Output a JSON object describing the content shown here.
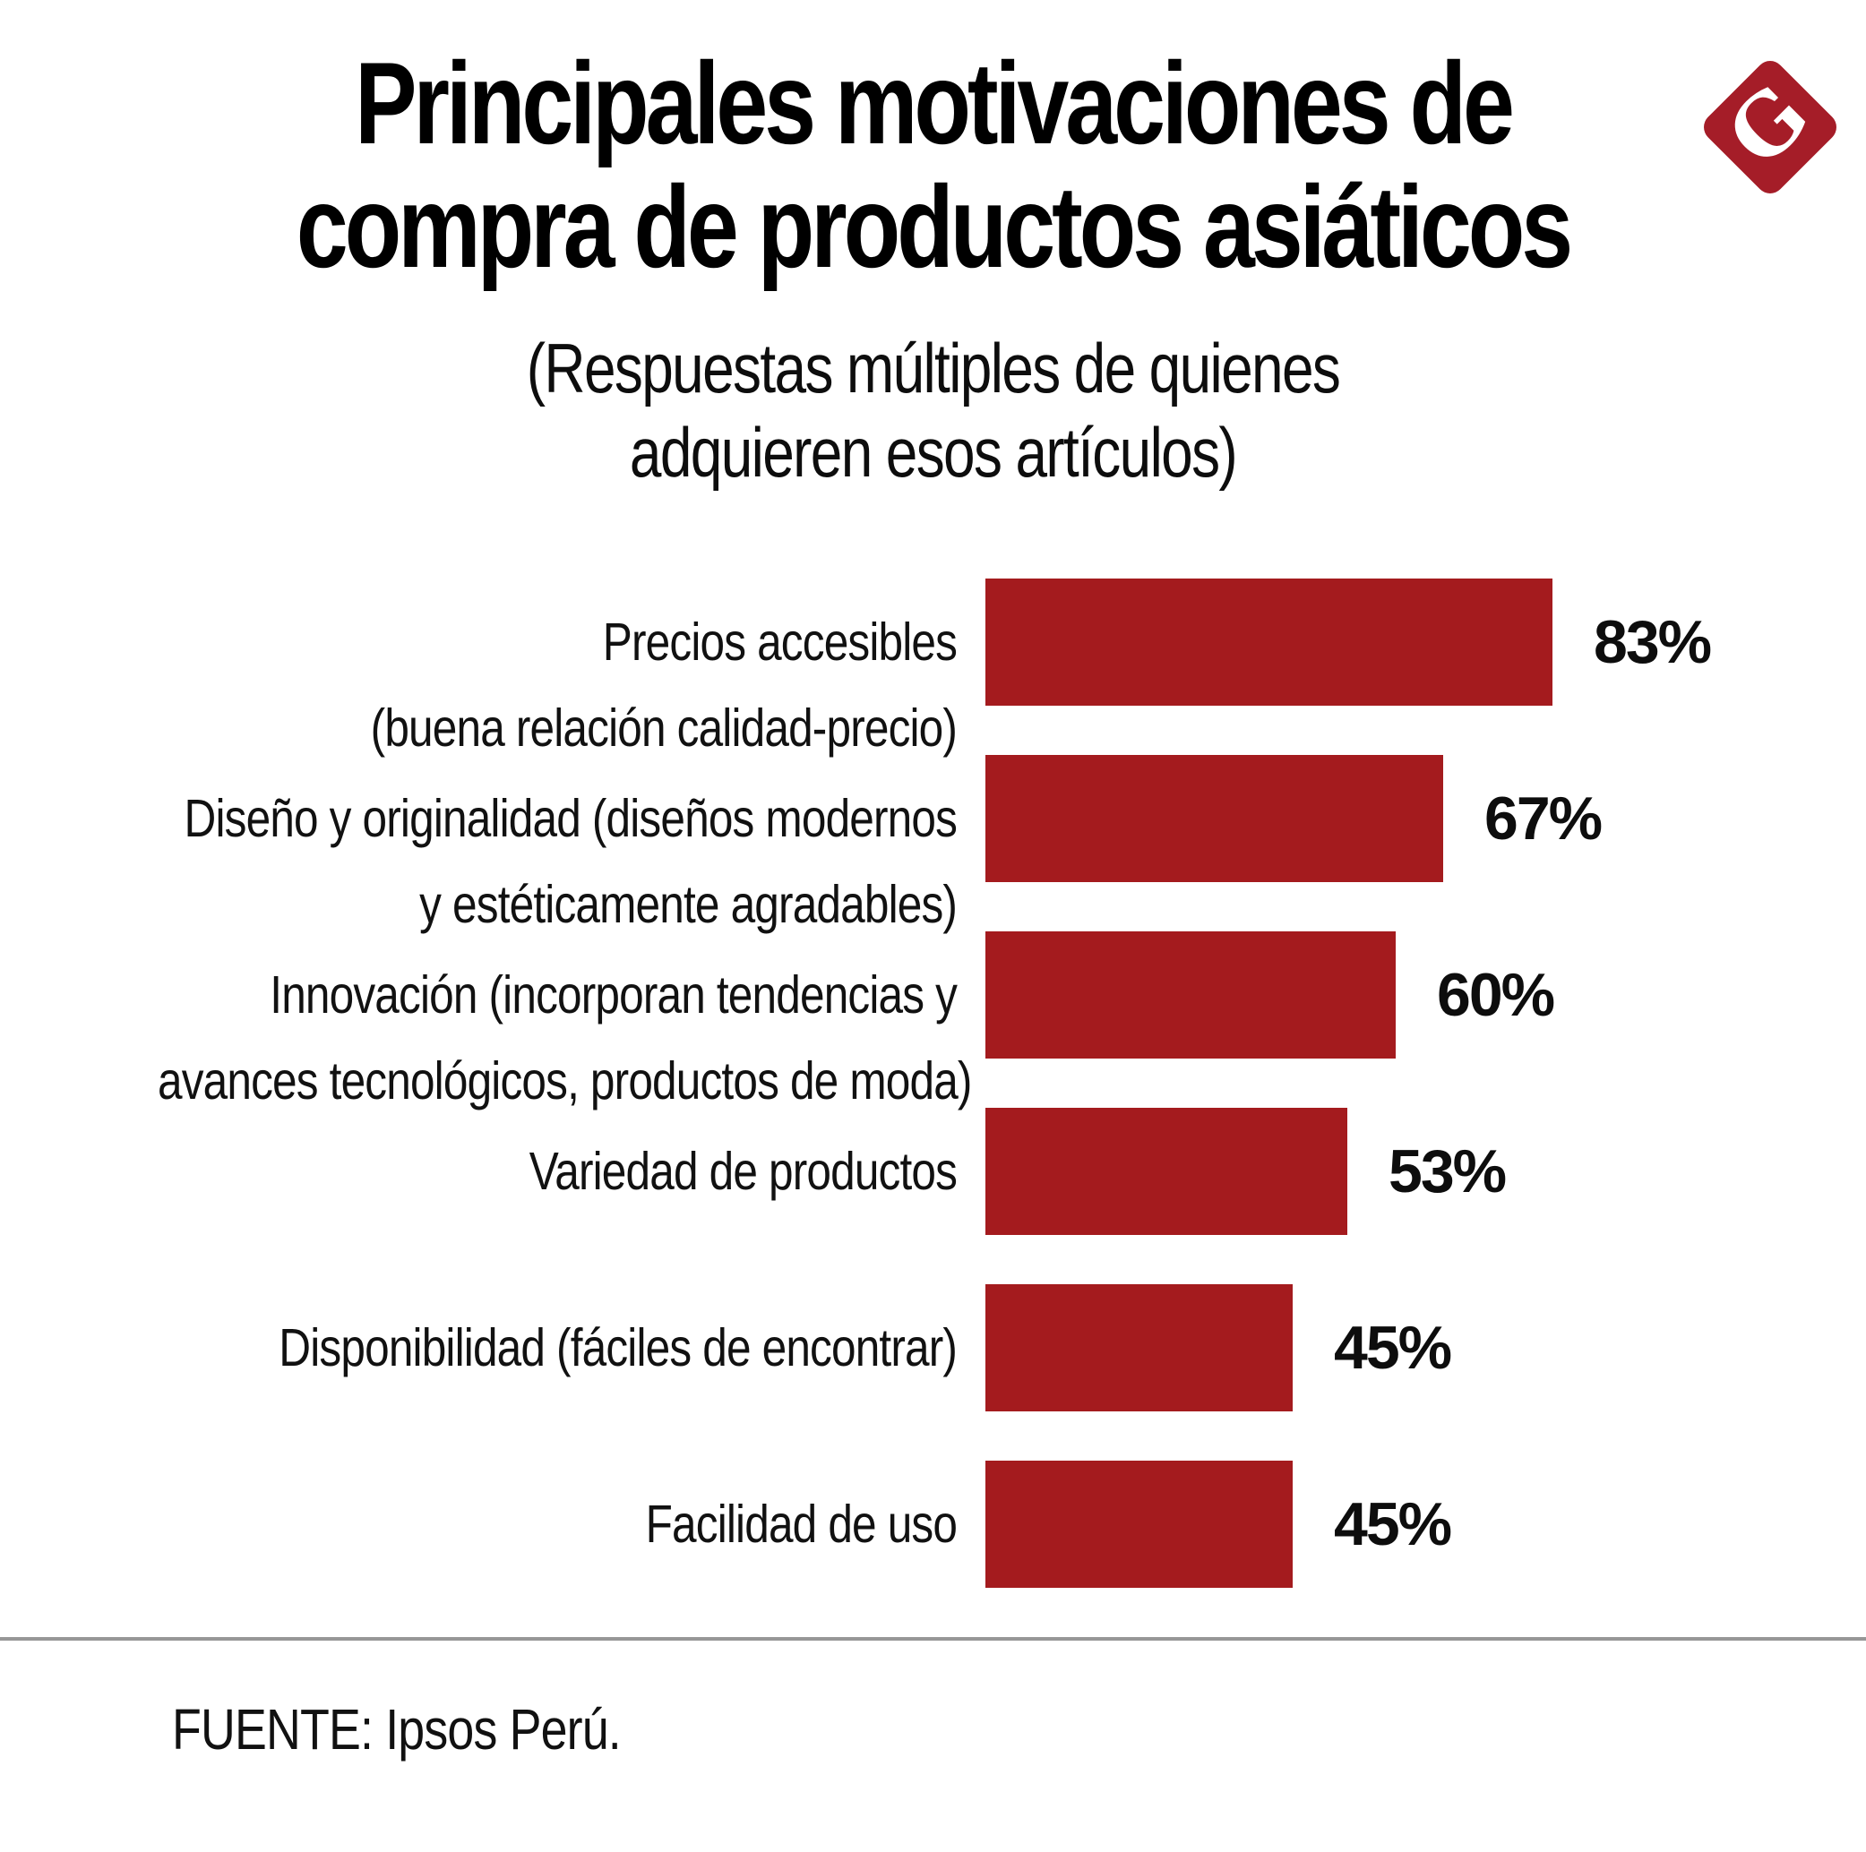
{
  "header": {
    "title_line1": "Principales motivaciones de",
    "title_line2": "compra de productos asiáticos",
    "subtitle_line1": "(Respuestas múltiples de quienes",
    "subtitle_line2": "adquieren esos artículos)"
  },
  "logo": {
    "letter": "G",
    "shape": "diamond",
    "color": "#A51D28"
  },
  "chart_data": {
    "type": "bar",
    "orientation": "horizontal",
    "title": "Principales motivaciones de compra de productos asiáticos",
    "subtitle": "(Respuestas múltiples de quienes adquieren esos artículos)",
    "unit": "%",
    "xlim": [
      0,
      100
    ],
    "grid": false,
    "legend": false,
    "bar_color": "#A41B1E",
    "categories": [
      "Precios accesibles (buena relación calidad-precio)",
      "Diseño y originalidad (diseños modernos y estéticamente agradables)",
      "Innovación (incorporan tendencias y avances tecnológicos, productos de moda)",
      "Variedad de productos",
      "Disponibilidad (fáciles de encontrar)",
      "Facilidad de uso"
    ],
    "category_lines": [
      [
        "Precios accesibles",
        "(buena relación calidad-precio)"
      ],
      [
        "Diseño y originalidad (diseños modernos",
        "y estéticamente agradables)"
      ],
      [
        "Innovación (incorporan tendencias y",
        "avances tecnológicos, productos de moda)"
      ],
      [
        "Variedad de productos"
      ],
      [
        "Disponibilidad (fáciles de encontrar)"
      ],
      [
        "Facilidad de uso"
      ]
    ],
    "values": [
      83,
      67,
      60,
      53,
      45,
      45
    ],
    "value_labels": [
      "83%",
      "67%",
      "60%",
      "53%",
      "45%",
      "45%"
    ]
  },
  "footer": {
    "source": "FUENTE: Ipsos Perú."
  }
}
